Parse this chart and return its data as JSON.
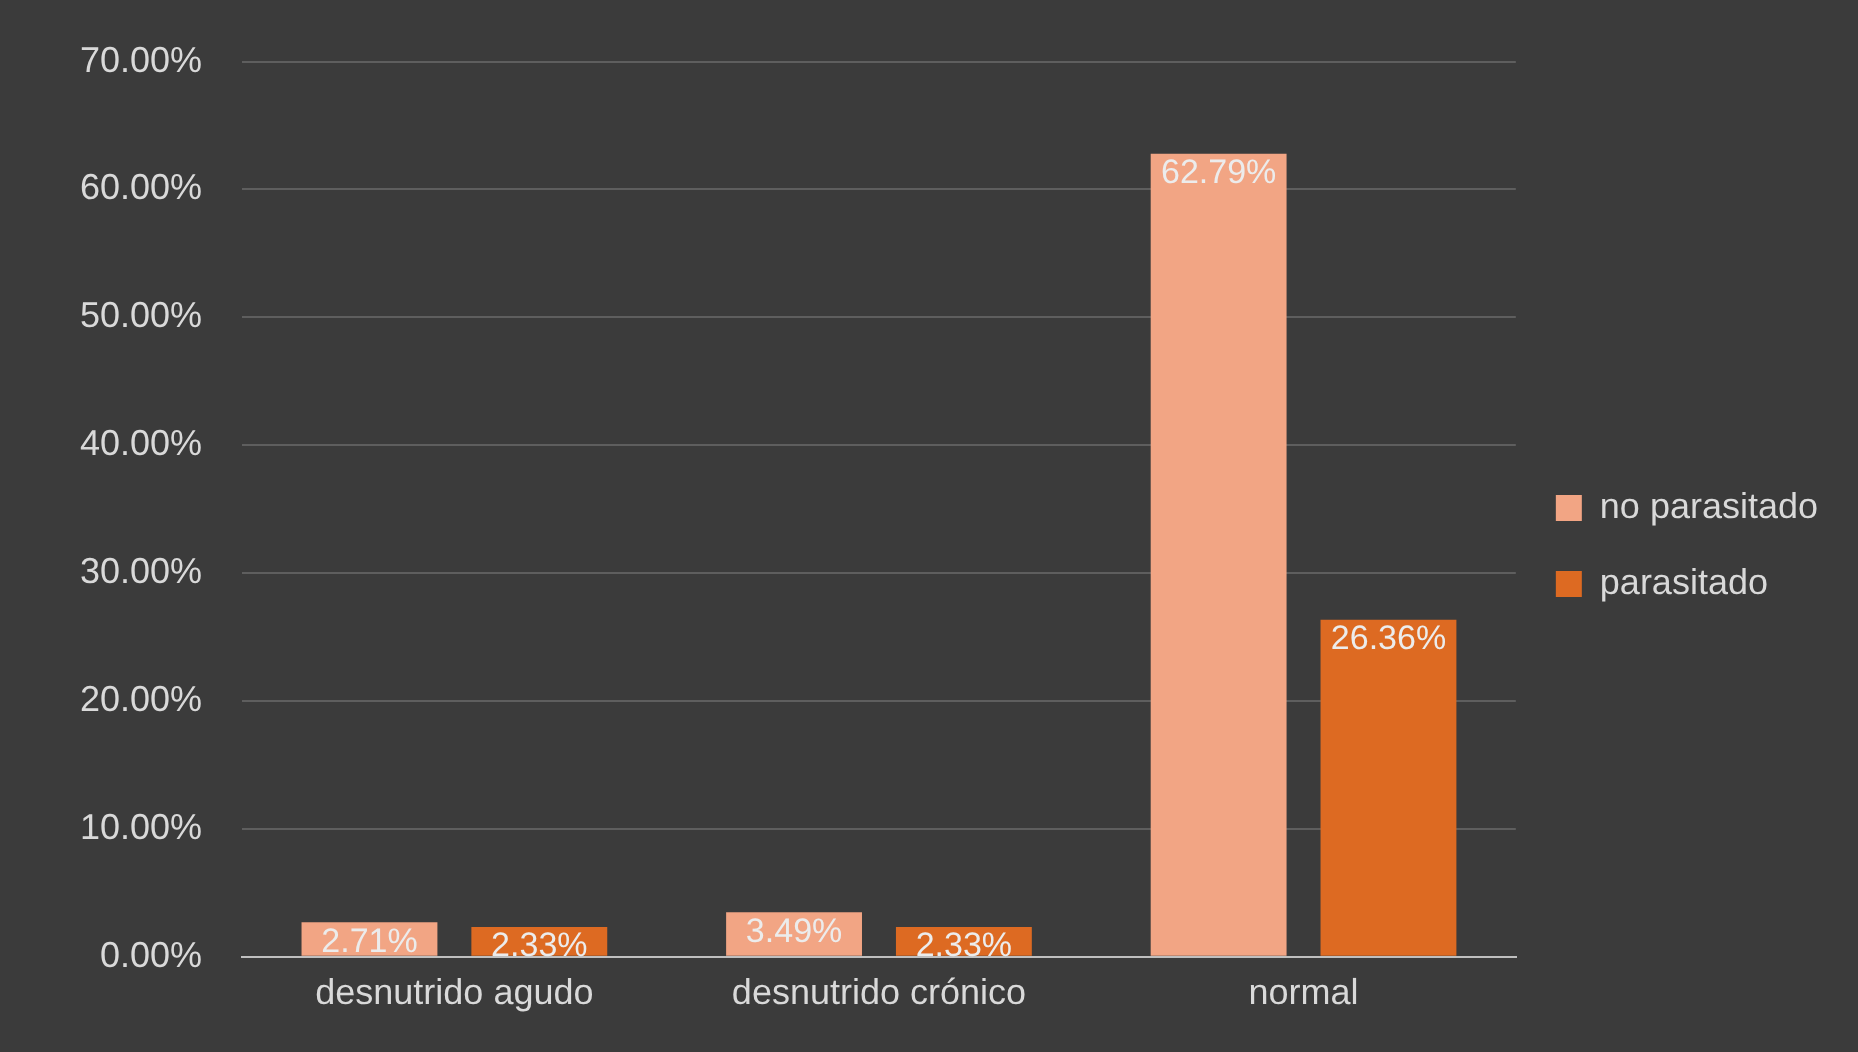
{
  "chart_data": {
    "type": "bar",
    "categories": [
      "desnutrido agudo",
      "desnutrido crónico",
      "normal"
    ],
    "series": [
      {
        "name": "no parasitado",
        "color": "#f2a584",
        "values": [
          2.71,
          3.49,
          62.79
        ],
        "value_labels": [
          "2.71%",
          "3.49%",
          "62.79%"
        ]
      },
      {
        "name": "parasitado",
        "color": "#dd6a22",
        "values": [
          2.33,
          2.33,
          26.36
        ],
        "value_labels": [
          "2.33%",
          "2.33%",
          "26.36%"
        ]
      }
    ],
    "ylim": [
      0,
      70
    ],
    "yticks": [
      {
        "value": 0,
        "label": "0.00%"
      },
      {
        "value": 10,
        "label": "10.00%"
      },
      {
        "value": 20,
        "label": "20.00%"
      },
      {
        "value": 30,
        "label": "30.00%"
      },
      {
        "value": 40,
        "label": "40.00%"
      },
      {
        "value": 50,
        "label": "50.00%"
      },
      {
        "value": 60,
        "label": "60.00%"
      },
      {
        "value": 70,
        "label": "70.00%"
      }
    ],
    "grid": "y",
    "legend": "right"
  }
}
